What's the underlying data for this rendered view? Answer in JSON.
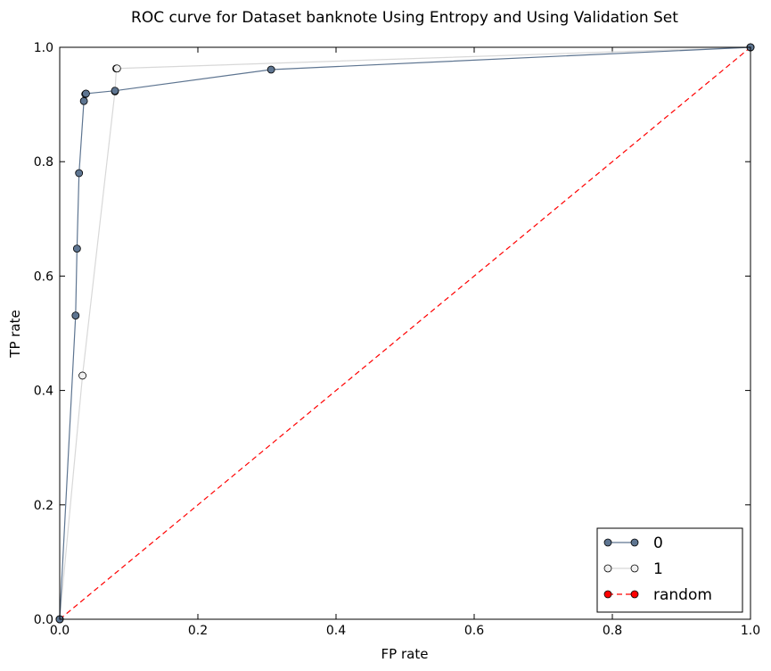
{
  "chart_data": {
    "type": "line",
    "title": "ROC curve for Dataset banknote Using Entropy and Using Validation Set",
    "xlabel": "FP rate",
    "ylabel": "TP rate",
    "xlim": [
      0.0,
      1.0
    ],
    "ylim": [
      0.0,
      1.0
    ],
    "x_ticks": [
      "0.0",
      "0.2",
      "0.4",
      "0.6",
      "0.8",
      "1.0"
    ],
    "y_ticks": [
      "0.0",
      "0.2",
      "0.4",
      "0.6",
      "0.8",
      "1.0"
    ],
    "grid": false,
    "legend_position": "bottom-right",
    "series": [
      {
        "name": "0",
        "color": "#5e7591",
        "marker_fill": "#5e7591",
        "line_style": "solid",
        "points": [
          [
            0.0,
            0.0
          ],
          [
            0.023,
            0.531
          ],
          [
            0.025,
            0.648
          ],
          [
            0.028,
            0.78
          ],
          [
            0.035,
            0.906
          ],
          [
            0.037,
            0.918
          ],
          [
            0.038,
            0.919
          ],
          [
            0.08,
            0.924
          ],
          [
            0.306,
            0.961
          ],
          [
            1.0,
            1.0
          ]
        ]
      },
      {
        "name": "1",
        "color": "#d8d8d8",
        "marker_fill": "#f0f0f0",
        "line_style": "solid",
        "points": [
          [
            0.0,
            0.0
          ],
          [
            0.033,
            0.426
          ],
          [
            0.08,
            0.923
          ],
          [
            0.082,
            0.963
          ],
          [
            0.083,
            0.963
          ],
          [
            1.0,
            1.0
          ]
        ]
      },
      {
        "name": "random",
        "color": "#ff0000",
        "marker_fill": "#ff0000",
        "line_style": "dashed",
        "points": [
          [
            0.0,
            0.0
          ],
          [
            1.0,
            1.0
          ]
        ]
      }
    ]
  }
}
